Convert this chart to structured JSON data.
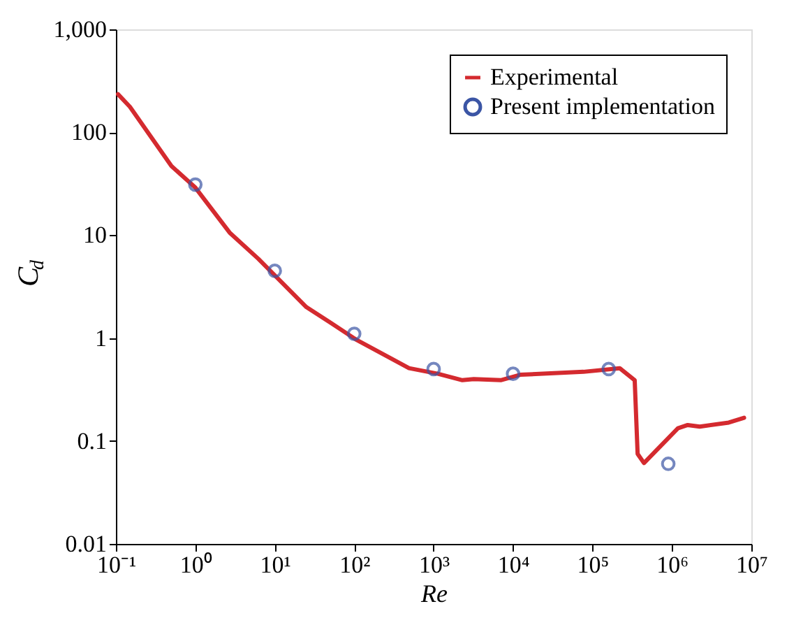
{
  "chart_data": {
    "type": "line",
    "xlabel": "Re",
    "ylabel": "C$_{d}$",
    "log": "xy",
    "legend": "top right",
    "grid": false,
    "xlim": [
      0.1,
      10000000
    ],
    "ylim": [
      0.01,
      1000
    ],
    "xticks": [
      {
        "value": 0.1,
        "label": "10⁻¹"
      },
      {
        "value": 1,
        "label": "10⁰"
      },
      {
        "value": 10,
        "label": "10¹"
      },
      {
        "value": 100,
        "label": "10²"
      },
      {
        "value": 1000,
        "label": "10³"
      },
      {
        "value": 10000,
        "label": "10⁴"
      },
      {
        "value": 100000,
        "label": "10⁵"
      },
      {
        "value": 1000000,
        "label": "10⁶"
      },
      {
        "value": 10000000,
        "label": "10⁷"
      }
    ],
    "yticks": [
      0.01,
      0.1,
      1,
      10,
      100,
      {
        "value": 1000,
        "label": "1,000"
      }
    ],
    "series": [
      {
        "name": "Experimental",
        "type": "line",
        "color": "#d42a2f",
        "line_style": "solid",
        "marker": "none",
        "x": [
          0.106,
          0.15,
          0.5,
          1.0,
          2.7,
          6.2,
          15.5,
          25,
          51,
          105,
          490,
          1130,
          2300,
          3200,
          7000,
          12300,
          77000,
          220000,
          340000,
          370000,
          445000,
          1190000,
          1580000,
          2240000,
          5200000,
          8100000
        ],
        "values": [
          235,
          177,
          47,
          29,
          10.6,
          5.9,
          2.9,
          2.0,
          1.4,
          0.97,
          0.51,
          0.45,
          0.39,
          0.4,
          0.39,
          0.44,
          0.47,
          0.51,
          0.39,
          0.075,
          0.061,
          0.133,
          0.143,
          0.138,
          0.151,
          0.168
        ]
      },
      {
        "name": "Present implementation",
        "type": "scatter",
        "color": "#3b55a5",
        "marker": "circle",
        "x": [
          1,
          10,
          100,
          1000,
          10000,
          160000,
          900000
        ],
        "values": [
          31,
          4.5,
          1.1,
          0.5,
          0.45,
          0.5,
          0.06
        ]
      }
    ]
  }
}
